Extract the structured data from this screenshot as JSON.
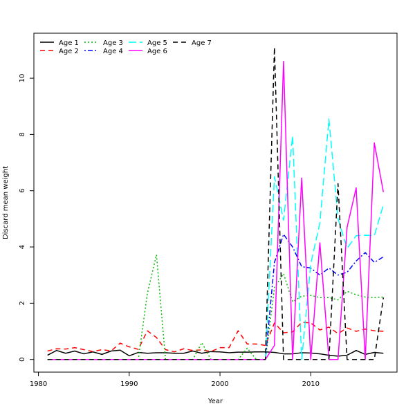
{
  "chart_data": {
    "type": "line",
    "title": "",
    "xlabel": "Year",
    "ylabel": "Discard mean weight",
    "xlim": [
      1979.5,
      2019.5
    ],
    "ylim": [
      -0.45,
      11.6
    ],
    "x_ticks": [
      1980,
      1990,
      2000,
      2010
    ],
    "y_ticks": [
      0,
      2,
      4,
      6,
      8,
      10
    ],
    "legend_position": "top-left",
    "x": [
      1981,
      1982,
      1983,
      1984,
      1985,
      1986,
      1987,
      1988,
      1989,
      1990,
      1991,
      1992,
      1993,
      1994,
      1995,
      1996,
      1997,
      1998,
      1999,
      2000,
      2001,
      2002,
      2003,
      2004,
      2005,
      2006,
      2007,
      2008,
      2009,
      2010,
      2011,
      2012,
      2013,
      2014,
      2015,
      2016,
      2017,
      2018
    ],
    "series": [
      {
        "name": "Age 1",
        "color": "#000000",
        "dash": "solid",
        "values": [
          0.15,
          0.32,
          0.22,
          0.3,
          0.2,
          0.27,
          0.18,
          0.3,
          0.33,
          0.13,
          0.25,
          0.22,
          0.24,
          0.24,
          0.22,
          0.22,
          0.3,
          0.22,
          0.28,
          0.27,
          0.24,
          0.26,
          0.26,
          0.27,
          0.27,
          0.25,
          0.2,
          0.2,
          0.24,
          0.23,
          0.2,
          0.15,
          0.12,
          0.15,
          0.32,
          0.18,
          0.25,
          0.22
        ]
      },
      {
        "name": "Age 2",
        "color": "#ff0000",
        "dash": "dashed",
        "values": [
          0.3,
          0.38,
          0.37,
          0.42,
          0.35,
          0.28,
          0.35,
          0.3,
          0.58,
          0.45,
          0.36,
          1.02,
          0.78,
          0.35,
          0.27,
          0.38,
          0.32,
          0.34,
          0.28,
          0.42,
          0.42,
          1.02,
          0.55,
          0.55,
          0.5,
          1.3,
          0.95,
          0.98,
          1.32,
          1.3,
          1.05,
          1.15,
          0.92,
          1.12,
          1.0,
          1.08,
          1.02,
          1.0
        ]
      },
      {
        "name": "Age 3",
        "color": "#00bb00",
        "dash": "dotted",
        "values": [
          0,
          0,
          0,
          0,
          0,
          0,
          0,
          0,
          0,
          0,
          0,
          2.35,
          3.72,
          0,
          0,
          0,
          0,
          0.6,
          0,
          0,
          0,
          0,
          0.4,
          0,
          0,
          2.55,
          3.05,
          2.05,
          2.25,
          2.28,
          2.2,
          2.2,
          2.12,
          2.42,
          2.3,
          2.22,
          2.2,
          2.22
        ]
      },
      {
        "name": "Age 4",
        "color": "#0000ff",
        "dash": "dashdot",
        "values": [
          0,
          0,
          0,
          0,
          0,
          0,
          0,
          0,
          0,
          0,
          0,
          0,
          0,
          0,
          0,
          0,
          0,
          0,
          0,
          0,
          0,
          0,
          0,
          0,
          0,
          3.45,
          4.45,
          4.0,
          3.3,
          3.25,
          3.0,
          3.25,
          3.0,
          3.1,
          3.5,
          3.8,
          3.45,
          3.65
        ]
      },
      {
        "name": "Age 5",
        "color": "#00ffff",
        "dash": "longdash",
        "values": [
          0,
          0,
          0,
          0,
          0,
          0,
          0,
          0,
          0,
          0,
          0,
          0,
          0,
          0,
          0,
          0,
          0,
          0,
          0,
          0,
          0,
          0,
          0,
          0,
          0,
          6.5,
          4.95,
          7.95,
          0,
          3.4,
          4.85,
          8.55,
          5.0,
          3.95,
          4.4,
          4.42,
          4.4,
          5.5
        ]
      },
      {
        "name": "Age 6",
        "color": "#ff00ff",
        "dash": "solid",
        "values": [
          0,
          0,
          0,
          0,
          0,
          0,
          0,
          0,
          0,
          0,
          0,
          0,
          0,
          0,
          0,
          0,
          0,
          0,
          0,
          0,
          0,
          0,
          0,
          0,
          0,
          0.5,
          10.6,
          0,
          6.45,
          0,
          4.15,
          0,
          0,
          4.7,
          6.1,
          0,
          7.7,
          5.95
        ]
      },
      {
        "name": "Age 7",
        "color": "#000000",
        "dash": "dashed",
        "values": [
          0,
          0,
          0,
          0,
          0,
          0,
          0,
          0,
          0,
          0,
          0,
          0,
          0,
          0,
          0,
          0,
          0,
          0,
          0,
          0,
          0,
          0,
          0,
          0,
          0,
          11.1,
          0,
          0,
          0,
          0,
          0,
          0,
          6.25,
          0,
          0,
          0,
          0,
          2.2
        ]
      }
    ]
  }
}
